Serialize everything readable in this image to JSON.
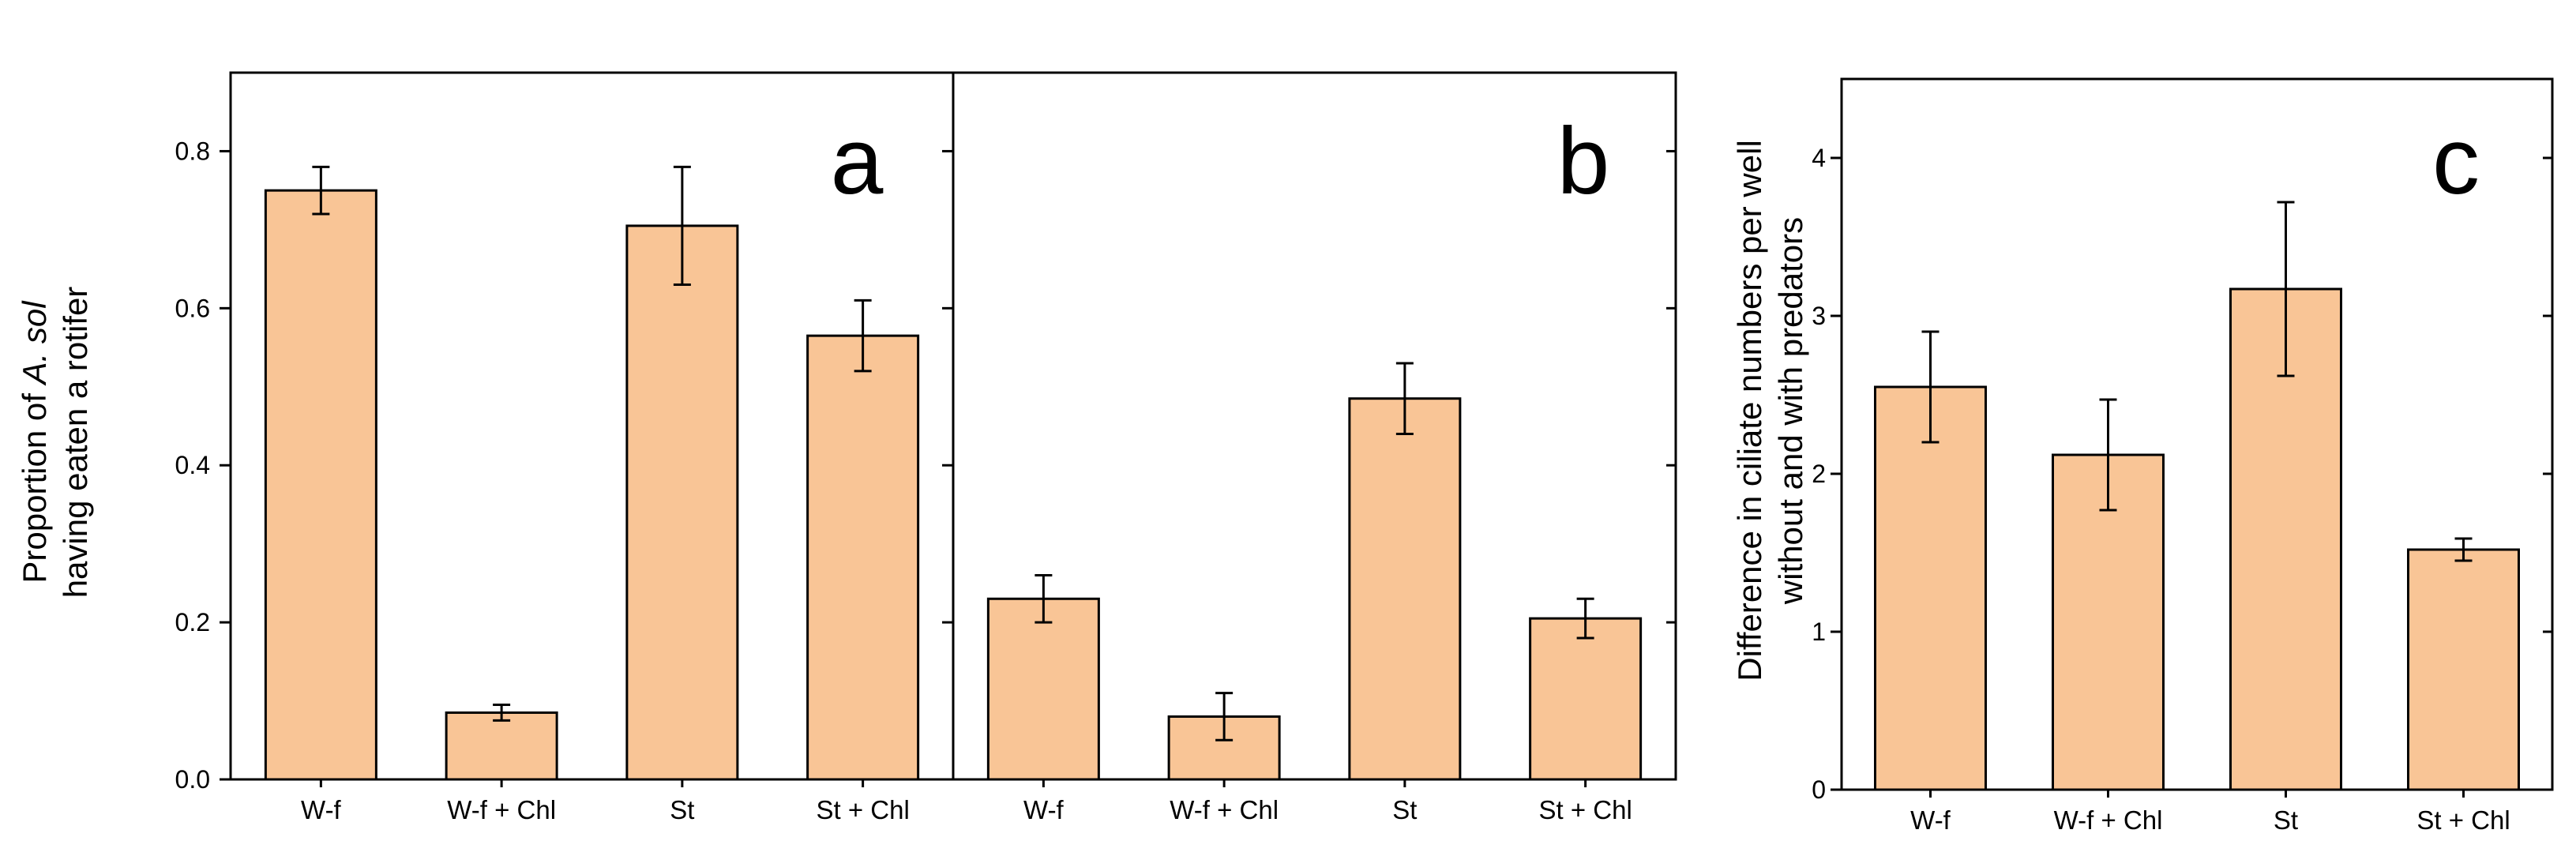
{
  "styles": {
    "bar_fill": "#f9c596",
    "bar_stroke": "#000000",
    "axis_color": "#000000"
  },
  "chart_data": [
    {
      "id": "a",
      "type": "bar",
      "panel_label": "a",
      "categories": [
        "W-f",
        "W-f + Chl",
        "St",
        "St + Chl"
      ],
      "values": [
        0.75,
        0.085,
        0.705,
        0.565
      ],
      "errors": [
        0.03,
        0.01,
        0.075,
        0.045
      ],
      "ylim": [
        0,
        0.9
      ],
      "yticks": [
        0.0,
        0.2,
        0.4,
        0.6,
        0.8
      ],
      "ytick_labels": [
        "0.0",
        "0.2",
        "0.4",
        "0.6",
        "0.8"
      ],
      "ylabel_line1_prefix": "Proportion of ",
      "ylabel_line1_italic": "A. sol",
      "ylabel_line2": "having eaten a rotifer"
    },
    {
      "id": "b",
      "type": "bar",
      "panel_label": "b",
      "categories": [
        "W-f",
        "W-f + Chl",
        "St",
        "St + Chl"
      ],
      "values": [
        0.23,
        0.08,
        0.485,
        0.205
      ],
      "errors": [
        0.03,
        0.03,
        0.045,
        0.025
      ],
      "ylim": [
        0,
        0.9
      ],
      "yticks": [
        0.0,
        0.2,
        0.4,
        0.6,
        0.8
      ]
    },
    {
      "id": "c",
      "type": "bar",
      "panel_label": "c",
      "categories": [
        "W-f",
        "W-f + Chl",
        "St",
        "St + Chl"
      ],
      "values": [
        2.55,
        2.12,
        3.17,
        1.52
      ],
      "errors": [
        0.35,
        0.35,
        0.55,
        0.07
      ],
      "ylim": [
        0,
        4.5
      ],
      "yticks": [
        0,
        1,
        2,
        3,
        4
      ],
      "ytick_labels": [
        "0",
        "1",
        "2",
        "3",
        "4"
      ],
      "ylabel_line1": "Difference in ciliate numbers per well",
      "ylabel_line2": "without and with predators"
    }
  ]
}
